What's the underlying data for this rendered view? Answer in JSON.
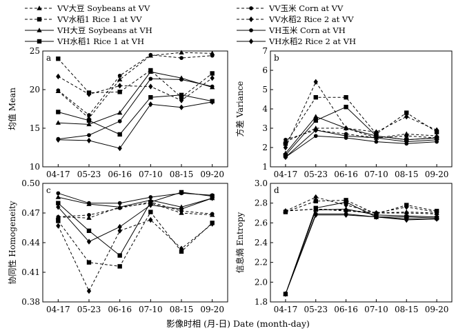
{
  "chart_data": [
    {
      "panel": "a",
      "type": "line",
      "ylabel": "均值 Mean",
      "ylim": [
        10,
        25
      ],
      "yticks": [
        "10",
        "15",
        "20",
        "25"
      ],
      "categories": [
        "04-17",
        "05-23",
        "06-16",
        "07-10",
        "08-15",
        "09-20"
      ],
      "series": [
        {
          "name": "VV大豆 Soybeans at VV",
          "values": [
            19.8,
            16.3,
            21.3,
            24.4,
            24.8,
            24.7
          ]
        },
        {
          "name": "VV玉米 Corn at VV",
          "values": [
            19.9,
            16.7,
            21.8,
            24.5,
            24.1,
            24.4
          ]
        },
        {
          "name": "VV水稻1 Rice 1 at VV",
          "values": [
            24.0,
            19.6,
            19.7,
            22.5,
            19.0,
            22.1
          ]
        },
        {
          "name": "VV水稻2 Rice 2 at VV",
          "values": [
            21.7,
            19.4,
            20.5,
            20.4,
            18.6,
            21.5
          ]
        },
        {
          "name": "VH大豆 Soybeans at VH",
          "values": [
            15.7,
            15.5,
            17.0,
            22.3,
            21.5,
            20.3
          ]
        },
        {
          "name": "VH玉米 Corn at VH",
          "values": [
            13.6,
            14.1,
            15.9,
            21.4,
            21.3,
            20.4
          ]
        },
        {
          "name": "VH水稻1 Rice 1 at VH",
          "values": [
            17.1,
            16.0,
            14.2,
            19.0,
            19.3,
            18.5
          ]
        },
        {
          "name": "VH水稻2 Rice 2 at VH",
          "values": [
            13.5,
            13.4,
            12.4,
            18.1,
            17.7,
            18.4
          ]
        }
      ]
    },
    {
      "panel": "b",
      "type": "line",
      "ylabel": "方差 Variance",
      "ylim": [
        1,
        7
      ],
      "yticks": [
        "1",
        "2",
        "3",
        "4",
        "5",
        "6",
        "7"
      ],
      "categories": [
        "04-17",
        "05-23",
        "06-16",
        "07-10",
        "08-15",
        "09-20"
      ],
      "series": [
        {
          "name": "VV大豆 Soybeans at VV",
          "values": [
            2.3,
            3.0,
            3.0,
            2.5,
            2.7,
            2.6
          ]
        },
        {
          "name": "VV玉米 Corn at VV",
          "values": [
            2.4,
            2.9,
            2.7,
            2.5,
            2.6,
            2.5
          ]
        },
        {
          "name": "VV水稻1 Rice 1 at VV",
          "values": [
            2.2,
            4.6,
            4.6,
            2.7,
            3.8,
            2.8
          ]
        },
        {
          "name": "VV水稻2 Rice 2 at VV",
          "values": [
            2.0,
            5.4,
            3.0,
            2.8,
            3.6,
            2.9
          ]
        },
        {
          "name": "VH大豆 Soybeans at VH",
          "values": [
            1.7,
            3.6,
            3.0,
            2.6,
            2.4,
            2.5
          ]
        },
        {
          "name": "VH玉米 Corn at VH",
          "values": [
            1.5,
            2.6,
            2.5,
            2.3,
            2.2,
            2.3
          ]
        },
        {
          "name": "VH水稻1 Rice 1 at VH",
          "values": [
            1.6,
            3.4,
            4.1,
            2.6,
            2.4,
            2.5
          ]
        },
        {
          "name": "VH水稻2 Rice 2 at VH",
          "values": [
            1.5,
            2.9,
            2.6,
            2.5,
            2.3,
            2.4
          ]
        }
      ]
    },
    {
      "panel": "c",
      "type": "line",
      "ylabel": "协同性 Homogeneity",
      "ylim": [
        0.38,
        0.5
      ],
      "yticks": [
        "0.38",
        "0.41",
        "0.44",
        "0.47",
        "0.50"
      ],
      "categories": [
        "04-17",
        "05-23",
        "06-16",
        "07-10",
        "08-15",
        "09-20"
      ],
      "series": [
        {
          "name": "VV大豆 Soybeans at VV",
          "values": [
            0.466,
            0.465,
            0.476,
            0.48,
            0.47,
            0.468
          ]
        },
        {
          "name": "VV玉米 Corn at VV",
          "values": [
            0.466,
            0.468,
            0.475,
            0.481,
            0.472,
            0.469
          ]
        },
        {
          "name": "VV水稻1 Rice 1 at VV",
          "values": [
            0.462,
            0.42,
            0.416,
            0.471,
            0.431,
            0.46
          ]
        },
        {
          "name": "VV水稻2 Rice 2 at VV",
          "values": [
            0.457,
            0.391,
            0.452,
            0.463,
            0.434,
            0.459
          ]
        },
        {
          "name": "VH大豆 Soybeans at VH",
          "values": [
            0.486,
            0.479,
            0.476,
            0.483,
            0.476,
            0.485
          ]
        },
        {
          "name": "VH玉米 Corn at VH",
          "values": [
            0.49,
            0.48,
            0.48,
            0.486,
            0.49,
            0.488
          ]
        },
        {
          "name": "VH水稻1 Rice 1 at VH",
          "values": [
            0.48,
            0.452,
            0.427,
            0.481,
            0.491,
            0.487
          ]
        },
        {
          "name": "VH水稻2 Rice 2 at VH",
          "values": [
            0.476,
            0.441,
            0.456,
            0.478,
            0.474,
            0.485
          ]
        }
      ]
    },
    {
      "panel": "d",
      "type": "line",
      "ylabel": "信息熵 Entropy",
      "ylim": [
        1.8,
        3.0
      ],
      "yticks": [
        "1.8",
        "2.0",
        "2.2",
        "2.4",
        "2.6",
        "2.8",
        "3.0"
      ],
      "categories": [
        "04-17",
        "05-23",
        "06-16",
        "07-10",
        "08-15",
        "09-20"
      ],
      "series": [
        {
          "name": "VV大豆 Soybeans at VV",
          "values": [
            2.72,
            2.74,
            2.73,
            2.7,
            2.71,
            2.7
          ]
        },
        {
          "name": "VV玉米 Corn at VV",
          "values": [
            2.72,
            2.74,
            2.72,
            2.7,
            2.7,
            2.69
          ]
        },
        {
          "name": "VV水稻1 Rice 1 at VV",
          "values": [
            2.71,
            2.82,
            2.83,
            2.69,
            2.78,
            2.72
          ]
        },
        {
          "name": "VV水稻2 Rice 2 at VV",
          "values": [
            2.72,
            2.86,
            2.78,
            2.7,
            2.76,
            2.71
          ]
        },
        {
          "name": "VH大豆 Soybeans at VH",
          "values": [
            1.88,
            2.73,
            2.74,
            2.68,
            2.67,
            2.66
          ]
        },
        {
          "name": "VH玉米 Corn at VH",
          "values": [
            1.88,
            2.69,
            2.69,
            2.66,
            2.64,
            2.64
          ]
        },
        {
          "name": "VH水稻1 Rice 1 at VH",
          "values": [
            1.88,
            2.75,
            2.81,
            2.66,
            2.66,
            2.65
          ]
        },
        {
          "name": "VH水稻2 Rice 2 at VH",
          "values": [
            1.88,
            2.68,
            2.68,
            2.66,
            2.63,
            2.64
          ]
        }
      ]
    }
  ],
  "series_style": [
    {
      "dash": true,
      "marker": "triangle"
    },
    {
      "dash": true,
      "marker": "circle"
    },
    {
      "dash": true,
      "marker": "square"
    },
    {
      "dash": true,
      "marker": "diamond"
    },
    {
      "dash": false,
      "marker": "triangle"
    },
    {
      "dash": false,
      "marker": "circle"
    },
    {
      "dash": false,
      "marker": "square"
    },
    {
      "dash": false,
      "marker": "diamond"
    }
  ],
  "xlabel": "影像时相 (月-日) Date (month-day)",
  "line_color": "#000000"
}
